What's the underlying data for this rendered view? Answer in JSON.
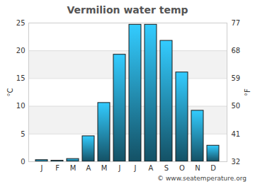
{
  "chart_data": {
    "type": "bar",
    "title": "Vermilion water temp",
    "categories": [
      "J",
      "F",
      "M",
      "A",
      "M",
      "J",
      "J",
      "A",
      "S",
      "O",
      "N",
      "D"
    ],
    "values": [
      0.3,
      0.2,
      0.5,
      4.6,
      10.6,
      19.3,
      24.7,
      24.7,
      21.8,
      16.1,
      9.2,
      2.9
    ],
    "color": "#33ccff",
    "ylabel": "°C",
    "ylim": [
      0,
      25
    ],
    "yticks": [
      0,
      5,
      10,
      15,
      20,
      25
    ],
    "y2label": "°F",
    "y2lim": [
      32,
      77
    ],
    "y2ticks": [
      32,
      41,
      50,
      59,
      68,
      77
    ],
    "grid": true,
    "caption": "© www.seatemperature.org"
  }
}
